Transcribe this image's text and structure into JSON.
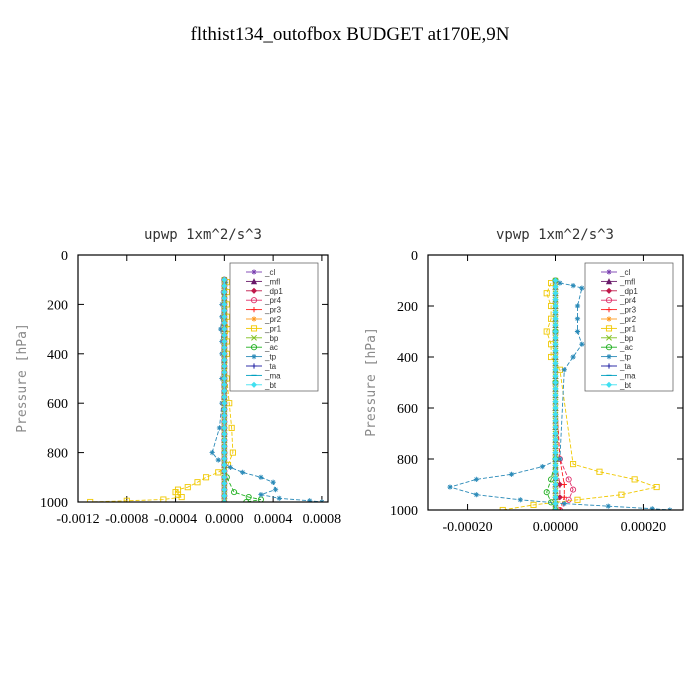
{
  "title": "flthist134_outofbox  BUDGET at170E,9N",
  "chart_data": [
    {
      "type": "line",
      "title": "upwp  1xm^2/s^3",
      "ylabel": "Pressure [hPa]",
      "xlim": [
        -0.0012,
        0.00085
      ],
      "ylim": [
        1000,
        0
      ],
      "xticks": [
        -0.0012,
        -0.0008,
        -0.0004,
        0.0,
        0.0004,
        0.0008
      ],
      "xtick_labels": [
        "-0.0012",
        "-0.0008",
        "-0.0004",
        "0.0000",
        "0.0004",
        "0.0008"
      ],
      "yticks": [
        0,
        200,
        400,
        600,
        800,
        1000
      ],
      "ytick_labels": [
        "0",
        "200",
        "400",
        "600",
        "800",
        "1000"
      ],
      "legend": "top-right",
      "series": [
        {
          "name": "_cl",
          "color": "#7a3fb0",
          "marker": "star",
          "x": [
            0,
            0,
            0,
            0,
            0,
            0
          ],
          "y": [
            100,
            300,
            500,
            700,
            900,
            1000
          ]
        },
        {
          "name": "_mfl",
          "color": "#6a1b6a",
          "marker": "triangle",
          "x": [
            0,
            0,
            0,
            0,
            0,
            0
          ],
          "y": [
            100,
            300,
            500,
            700,
            900,
            1000
          ]
        },
        {
          "name": "_dp1",
          "color": "#c0184a",
          "marker": "diamond",
          "x": [
            0,
            0,
            0,
            0,
            0,
            0
          ],
          "y": [
            100,
            300,
            500,
            700,
            900,
            1000
          ]
        },
        {
          "name": "_pr4",
          "color": "#e0306a",
          "marker": "circle",
          "x": [
            0,
            0,
            0,
            0,
            0,
            0
          ],
          "y": [
            100,
            300,
            500,
            700,
            900,
            1000
          ]
        },
        {
          "name": "_pr3",
          "color": "#ff2020",
          "marker": "plus",
          "x": [
            0,
            0,
            0,
            0,
            0,
            0
          ],
          "y": [
            100,
            300,
            500,
            700,
            900,
            1000
          ]
        },
        {
          "name": "_pr2",
          "color": "#ff9a20",
          "marker": "star",
          "x": [
            0,
            0,
            0,
            0,
            0,
            0
          ],
          "y": [
            100,
            300,
            500,
            700,
            900,
            1000
          ]
        },
        {
          "name": "_pr1",
          "color": "#f0c800",
          "marker": "square",
          "x": [
            2e-05,
            2e-05,
            2e-05,
            2e-05,
            3e-05,
            2e-05,
            2e-05,
            2e-05,
            4e-05,
            6e-05,
            7e-05,
            3e-05,
            -5e-05,
            -0.00015,
            -0.00022,
            -0.0003,
            -0.00038,
            -0.0004,
            -0.00038,
            -0.00035,
            -0.0005,
            -0.0008,
            -0.0011
          ],
          "y": [
            110,
            150,
            200,
            250,
            300,
            350,
            400,
            500,
            600,
            700,
            800,
            850,
            880,
            900,
            920,
            940,
            950,
            960,
            970,
            980,
            990,
            995,
            1000
          ]
        },
        {
          "name": "_bp",
          "color": "#80c020",
          "marker": "x",
          "x": [
            0,
            0,
            0,
            0,
            0,
            0
          ],
          "y": [
            100,
            300,
            500,
            700,
            900,
            1000
          ]
        },
        {
          "name": "_ac",
          "color": "#20b020",
          "marker": "circle",
          "x": [
            0,
            0,
            0,
            0,
            2e-05,
            8e-05,
            0.0002,
            0.0003,
            0.00018
          ],
          "y": [
            100,
            300,
            500,
            800,
            900,
            960,
            980,
            990,
            1000
          ]
        },
        {
          "name": "_tp",
          "color": "#2a8ab8",
          "marker": "star",
          "x": [
            1e-05,
            -1e-05,
            -2e-05,
            -2e-05,
            -3e-05,
            -2e-05,
            -2e-05,
            -2e-05,
            -2e-05,
            -4e-05,
            -0.0001,
            -5e-05,
            5e-05,
            0.00015,
            0.0003,
            0.0004,
            0.00042,
            0.0003,
            0.00045,
            0.0007,
            0.0008
          ],
          "y": [
            110,
            150,
            200,
            250,
            300,
            350,
            400,
            500,
            600,
            700,
            800,
            830,
            860,
            880,
            900,
            920,
            950,
            970,
            985,
            995,
            1000
          ]
        },
        {
          "name": "_ta",
          "color": "#1a1aa0",
          "marker": "plus",
          "x": [
            0,
            0,
            0,
            0,
            0,
            0
          ],
          "y": [
            100,
            300,
            500,
            700,
            900,
            1000
          ]
        },
        {
          "name": "_ma",
          "color": "#00a0c0",
          "marker": "dash",
          "x": [
            0,
            0,
            0,
            0,
            0,
            0
          ],
          "y": [
            100,
            300,
            500,
            700,
            900,
            1000
          ]
        },
        {
          "name": "_bt",
          "color": "#40e0f0",
          "marker": "diamond",
          "x": [
            0,
            0,
            0,
            0,
            0,
            0
          ],
          "y": [
            100,
            300,
            500,
            700,
            900,
            1000
          ]
        }
      ]
    },
    {
      "type": "line",
      "title": "vpwp  1xm^2/s^3",
      "ylabel": "Pressure [hPa]",
      "xlim": [
        -0.00029,
        0.00029
      ],
      "ylim": [
        1000,
        0
      ],
      "xticks": [
        -0.0002,
        0.0,
        0.0002
      ],
      "xtick_labels": [
        "-0.00020",
        "0.00000",
        "0.00020"
      ],
      "yticks": [
        0,
        200,
        400,
        600,
        800,
        1000
      ],
      "ytick_labels": [
        "0",
        "200",
        "400",
        "600",
        "800",
        "1000"
      ],
      "legend": "top-right",
      "series": [
        {
          "name": "_cl",
          "color": "#7a3fb0",
          "marker": "star",
          "x": [
            0,
            0,
            0,
            0,
            0,
            0
          ],
          "y": [
            100,
            300,
            500,
            700,
            900,
            1000
          ]
        },
        {
          "name": "_mfl",
          "color": "#6a1b6a",
          "marker": "triangle",
          "x": [
            0,
            0,
            0,
            0,
            0,
            0
          ],
          "y": [
            100,
            300,
            500,
            700,
            900,
            1000
          ]
        },
        {
          "name": "_dp1",
          "color": "#c0184a",
          "marker": "diamond",
          "x": [
            0,
            0,
            0,
            0,
            1e-05,
            1e-05,
            0
          ],
          "y": [
            100,
            300,
            500,
            800,
            900,
            950,
            1000
          ]
        },
        {
          "name": "_pr4",
          "color": "#e0306a",
          "marker": "circle",
          "x": [
            0,
            0,
            0,
            1e-05,
            3e-05,
            4e-05,
            3e-05,
            1e-05
          ],
          "y": [
            100,
            300,
            500,
            800,
            880,
            920,
            960,
            1000
          ]
        },
        {
          "name": "_pr3",
          "color": "#ff2020",
          "marker": "plus",
          "x": [
            0,
            0,
            0,
            1e-05,
            2e-05,
            2e-05,
            1e-05
          ],
          "y": [
            100,
            300,
            500,
            800,
            900,
            950,
            1000
          ]
        },
        {
          "name": "_pr2",
          "color": "#ff9a20",
          "marker": "star",
          "x": [
            0,
            0,
            0,
            0,
            0,
            0
          ],
          "y": [
            100,
            300,
            500,
            700,
            900,
            1000
          ]
        },
        {
          "name": "_pr1",
          "color": "#f0c800",
          "marker": "square",
          "x": [
            -1e-05,
            -2e-05,
            -1e-05,
            -1e-05,
            -2e-05,
            -1e-05,
            -1e-05,
            1e-05,
            4e-05,
            0.0001,
            0.00018,
            0.00023,
            0.00015,
            5e-05,
            -5e-05,
            -0.00012
          ],
          "y": [
            110,
            150,
            200,
            250,
            300,
            350,
            400,
            450,
            820,
            850,
            880,
            910,
            940,
            960,
            980,
            1000
          ]
        },
        {
          "name": "_bp",
          "color": "#80c020",
          "marker": "x",
          "x": [
            0,
            0,
            0,
            0,
            0,
            0
          ],
          "y": [
            100,
            300,
            500,
            700,
            900,
            1000
          ]
        },
        {
          "name": "_ac",
          "color": "#20b020",
          "marker": "circle",
          "x": [
            0,
            0,
            0,
            0,
            -1e-05,
            -2e-05,
            -1e-05,
            0
          ],
          "y": [
            100,
            300,
            500,
            800,
            880,
            930,
            970,
            1000
          ]
        },
        {
          "name": "_tp",
          "color": "#2a8ab8",
          "marker": "star",
          "x": [
            1e-05,
            4e-05,
            6e-05,
            5e-05,
            5e-05,
            5e-05,
            6e-05,
            4e-05,
            2e-05,
            1e-05,
            -3e-05,
            -0.0001,
            -0.00018,
            -0.00024,
            -0.00018,
            -8e-05,
            2e-05,
            0.00012,
            0.00022,
            0.00026
          ],
          "y": [
            110,
            120,
            130,
            200,
            250,
            300,
            350,
            400,
            450,
            800,
            830,
            860,
            880,
            910,
            940,
            960,
            975,
            985,
            995,
            1000
          ]
        },
        {
          "name": "_ta",
          "color": "#1a1aa0",
          "marker": "plus",
          "x": [
            0,
            0,
            0,
            0,
            0,
            0
          ],
          "y": [
            100,
            300,
            500,
            700,
            900,
            1000
          ]
        },
        {
          "name": "_ma",
          "color": "#00a0c0",
          "marker": "dash",
          "x": [
            0,
            0,
            0,
            0,
            0,
            0
          ],
          "y": [
            100,
            300,
            500,
            700,
            900,
            1000
          ]
        },
        {
          "name": "_bt",
          "color": "#40e0f0",
          "marker": "diamond",
          "x": [
            0,
            0,
            0,
            0,
            0,
            0
          ],
          "y": [
            100,
            300,
            500,
            700,
            900,
            1000
          ]
        }
      ]
    }
  ]
}
